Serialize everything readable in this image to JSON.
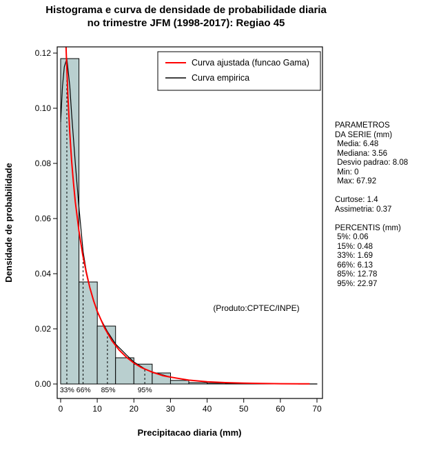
{
  "chart_data": {
    "type": "bar",
    "subtype": "histogram-with-density-curves",
    "title_line1": "Histograma e curva de densidade de probabilidade diaria",
    "title_line2": "no trimestre JFM (1998-2017): Regiao 45",
    "xlabel": "Precipitacao diaria (mm)",
    "ylabel": "Densidade de probabilidade",
    "xlim": [
      0,
      70
    ],
    "ylim": [
      0,
      0.12
    ],
    "grid": false,
    "legend_position": "top-right",
    "xticks": [
      0,
      10,
      20,
      30,
      40,
      50,
      60,
      70
    ],
    "ytick_values": [
      0,
      0.02,
      0.04,
      0.06,
      0.08,
      0.1,
      0.12
    ],
    "ytick_labels": [
      "0.00",
      "0.02",
      "0.04",
      "0.06",
      "0.08",
      "0.10",
      "0.12"
    ],
    "histogram": {
      "bin_width": 5,
      "bin_start": 0,
      "densities": [
        0.118,
        0.037,
        0.021,
        0.0095,
        0.0072,
        0.004,
        0.0013,
        0.0005,
        0.0003,
        0.0002,
        0.00015,
        0.0001,
        0.0001,
        5e-05
      ],
      "fill": "#b9cfcf",
      "stroke": "#000000"
    },
    "series": [
      {
        "name": "Curva ajustada (funcao Gama)",
        "color": "#ff0000",
        "width": 2,
        "points": [
          [
            0.3,
            0.242
          ],
          [
            0.5,
            0.198
          ],
          [
            0.7,
            0.172
          ],
          [
            1,
            0.147
          ],
          [
            1.2,
            0.135
          ],
          [
            1.5,
            0.121
          ],
          [
            2,
            0.104
          ],
          [
            2.5,
            0.091
          ],
          [
            3,
            0.081
          ],
          [
            3.5,
            0.073
          ],
          [
            4,
            0.066
          ],
          [
            5,
            0.0555
          ],
          [
            6,
            0.047
          ],
          [
            7,
            0.0404
          ],
          [
            8,
            0.0348
          ],
          [
            9,
            0.0302
          ],
          [
            10,
            0.0264
          ],
          [
            12,
            0.0203
          ],
          [
            14,
            0.0157
          ],
          [
            16,
            0.0123
          ],
          [
            18,
            0.0097
          ],
          [
            20,
            0.0076
          ],
          [
            22,
            0.006
          ],
          [
            25,
            0.0043
          ],
          [
            28,
            0.003
          ],
          [
            30,
            0.0025
          ],
          [
            35,
            0.0014
          ],
          [
            40,
            0.0008
          ],
          [
            45,
            0.0005
          ],
          [
            50,
            0.0003
          ],
          [
            55,
            0.0002
          ],
          [
            60,
            0.0001
          ],
          [
            65,
            6e-05
          ],
          [
            68,
            5e-05
          ]
        ]
      },
      {
        "name": "Curva empirica",
        "color": "#000000",
        "width": 1.2,
        "points": [
          [
            0,
            0.095
          ],
          [
            0.5,
            0.108
          ],
          [
            1,
            0.115
          ],
          [
            1.69,
            0.118
          ],
          [
            2.5,
            0.108
          ],
          [
            3,
            0.098
          ],
          [
            4,
            0.08
          ],
          [
            5,
            0.064
          ],
          [
            6.13,
            0.048
          ],
          [
            7,
            0.041
          ],
          [
            8,
            0.035
          ],
          [
            10,
            0.026
          ],
          [
            12.78,
            0.019
          ],
          [
            15,
            0.0145
          ],
          [
            18,
            0.0105
          ],
          [
            20,
            0.008
          ],
          [
            22.97,
            0.0055
          ],
          [
            25,
            0.0044
          ],
          [
            30,
            0.0025
          ],
          [
            35,
            0.0014
          ],
          [
            40,
            0.0008
          ],
          [
            45,
            0.0005
          ],
          [
            50,
            0.0003
          ],
          [
            55,
            0.0002
          ],
          [
            60,
            0.0001
          ],
          [
            65,
            7e-05
          ],
          [
            68,
            5e-05
          ]
        ]
      }
    ],
    "percentile_lines": [
      {
        "x": 1.69,
        "top": 0.118,
        "label": "33%"
      },
      {
        "x": 6.13,
        "top": 0.048,
        "label": "66%"
      },
      {
        "x": 12.78,
        "top": 0.019,
        "label": "85%"
      },
      {
        "x": 22.97,
        "top": 0.0055,
        "label": "95%"
      }
    ],
    "percentile_axis_labels": [
      {
        "text": "33% 66%",
        "x": 4.0
      },
      {
        "text": "85%",
        "x": 13.0
      },
      {
        "text": "95%",
        "x": 23.0
      }
    ],
    "annotation": "(Produto:CPTEC/INPE)"
  },
  "side_panel": {
    "lines": [
      "PARAMETROS",
      "DA SERIE (mm)",
      " Media: 6.48",
      " Mediana: 3.56",
      " Desvio padrao: 8.08",
      " Min: 0",
      " Max: 67.92",
      "",
      "Curtose: 1.4",
      "Assimetria: 0.37",
      "",
      "PERCENTIS (mm)",
      " 5%: 0.06",
      " 15%: 0.48",
      " 33%: 1.69",
      " 66%: 6.13",
      " 85%: 12.78",
      " 95%: 22.97"
    ]
  }
}
